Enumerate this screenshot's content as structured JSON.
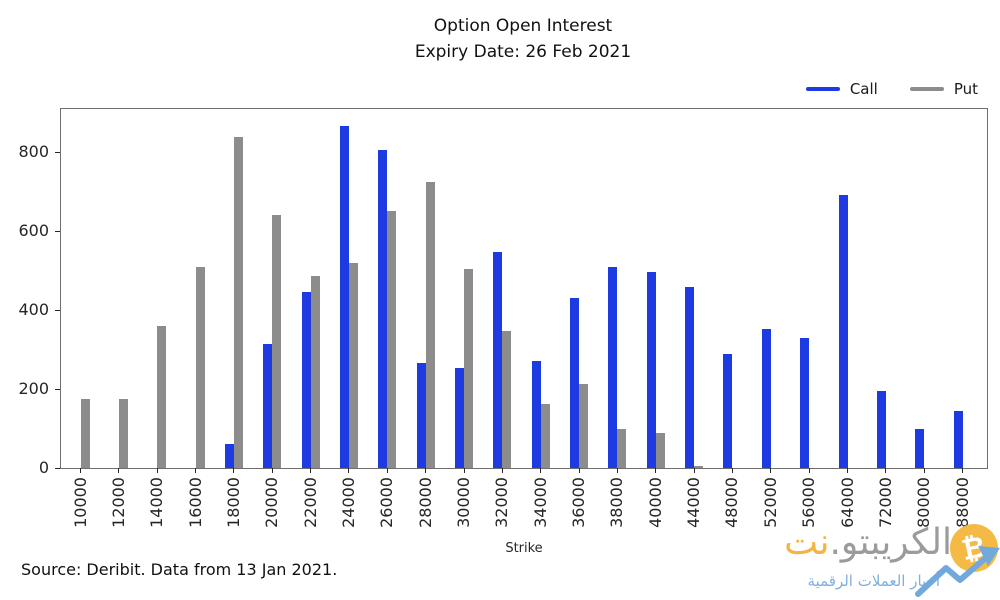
{
  "title": "Option Open Interest",
  "subtitle": "Expiry Date: 26 Feb 2021",
  "legend": {
    "items": [
      {
        "label": "Call",
        "color": "#1d3be0"
      },
      {
        "label": "Put",
        "color": "#8c8c8c"
      }
    ],
    "position": "upper right"
  },
  "chart_data": {
    "type": "bar",
    "title": "Option Open Interest",
    "subtitle": "Expiry Date: 26 Feb 2021",
    "xlabel": "Strike",
    "ylabel": "",
    "ylim": [
      0,
      909
    ],
    "yticks": [
      0,
      200,
      400,
      600,
      800
    ],
    "grid": false,
    "legend_position": "upper right",
    "categories": [
      10000,
      12000,
      14000,
      16000,
      18000,
      20000,
      22000,
      24000,
      26000,
      28000,
      30000,
      32000,
      34000,
      36000,
      38000,
      40000,
      44000,
      48000,
      52000,
      56000,
      64000,
      72000,
      80000,
      88000
    ],
    "series": [
      {
        "name": "Call",
        "color": "#1d3be0",
        "values": [
          0,
          0,
          0,
          0,
          60,
          313,
          445,
          865,
          806,
          265,
          254,
          547,
          272,
          430,
          508,
          496,
          458,
          288,
          351,
          328,
          692,
          195,
          98,
          144
        ]
      },
      {
        "name": "Put",
        "color": "#8c8c8c",
        "values": [
          175,
          175,
          360,
          508,
          838,
          640,
          487,
          518,
          650,
          725,
          503,
          346,
          163,
          213,
          98,
          89,
          5,
          0,
          0,
          0,
          0,
          0,
          0,
          0
        ]
      }
    ]
  },
  "source_note": "Source: Deribit. Data from 13 Jan 2021.",
  "watermark": {
    "brand_gray": "الكريبتو.",
    "brand_orange": "نت",
    "coin_symbol": "₿",
    "tagline": "أخبار العملات الرقمية",
    "colors": {
      "coin": "#f4ba45",
      "brand_orange": "#f2b544",
      "brand_gray": "#9b9b9b",
      "tagline": "#7fb0de",
      "arrow": "#72a9dd"
    }
  }
}
